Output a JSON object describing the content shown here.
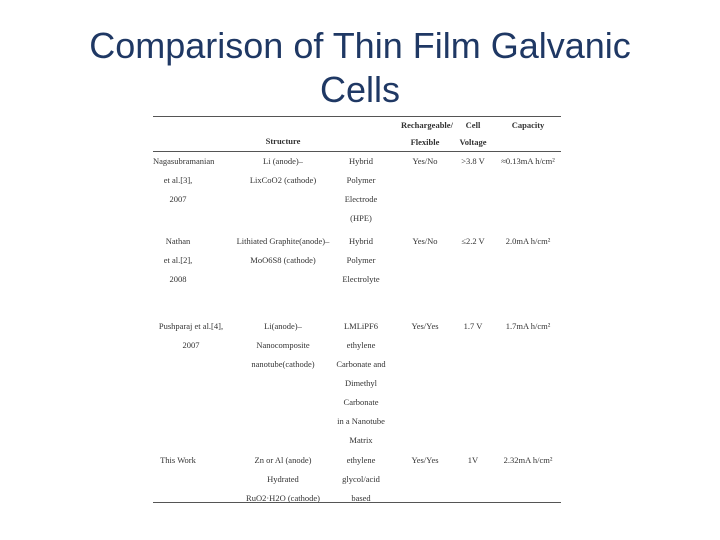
{
  "title": {
    "line1": "Comparison of Thin Film Galvanic",
    "line2": "Cells"
  },
  "table": {
    "headers": {
      "structure": "Structure",
      "rechargeable": "Rechargeable/",
      "flexible": "Flexible",
      "cell": "Cell",
      "voltage": "Voltage",
      "capacity": "Capacity"
    },
    "rows": [
      {
        "work": [
          "Nagasubramanian",
          "et al.[3],",
          "2007"
        ],
        "structure": [
          "Li (anode)–",
          "LixCoO2 (cathode)"
        ],
        "electrolyte": [
          "Hybrid",
          "Polymer",
          "Electrode",
          "(HPE)"
        ],
        "rechargeable": "Yes/No",
        "voltage": ">3.8 V",
        "capacity": "≈0.13mA h/cm²"
      },
      {
        "work": [
          "Nathan",
          "et al.[2],",
          "2008"
        ],
        "structure": [
          "Lithiated Graphite(anode)–",
          "MoO6S8 (cathode)"
        ],
        "electrolyte": [
          "Hybrid",
          "Polymer",
          "Electrolyte"
        ],
        "rechargeable": "Yes/No",
        "voltage": "≤2.2 V",
        "capacity": "2.0mA h/cm²"
      },
      {
        "work": [
          "Pushparaj et al.[4],",
          "2007"
        ],
        "structure": [
          "Li(anode)–",
          "Nanocomposite",
          "nanotube(cathode)"
        ],
        "electrolyte": [
          "LMLiPF6",
          "ethylene",
          "Carbonate and",
          "Dimethyl",
          "Carbonate",
          "in a Nanotube",
          "Matrix"
        ],
        "rechargeable": "Yes/Yes",
        "voltage": "1.7 V",
        "capacity": "1.7mA h/cm²"
      },
      {
        "work": [
          "This Work"
        ],
        "structure": [
          "Zn or Al (anode)",
          "Hydrated",
          "RuO2·H2O (cathode)"
        ],
        "electrolyte": [
          "ethylene",
          "glycol/acid",
          "based"
        ],
        "rechargeable": "Yes/Yes",
        "voltage": "1V",
        "capacity": "2.32mA h/cm²"
      }
    ]
  }
}
